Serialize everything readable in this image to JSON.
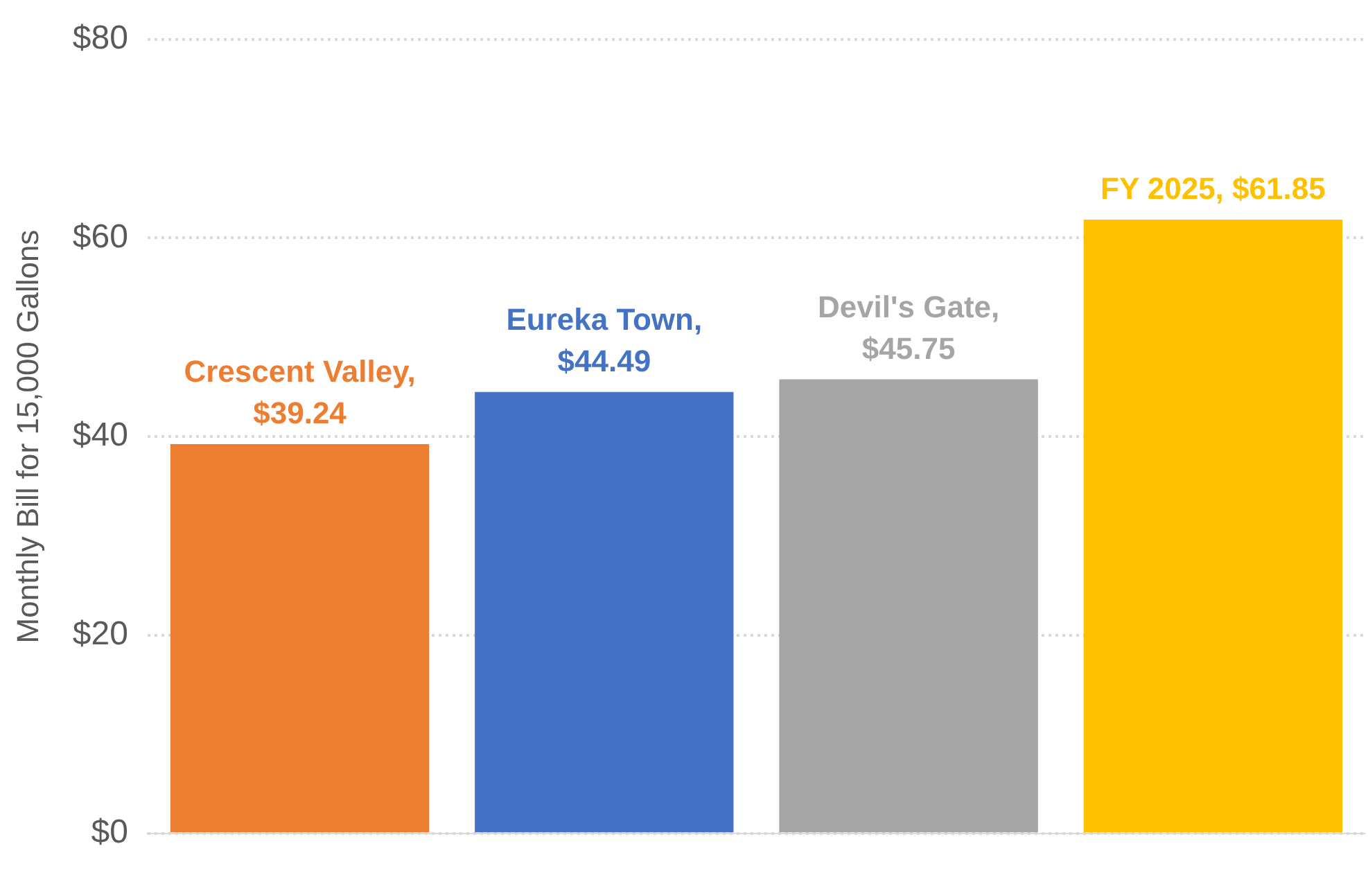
{
  "chart_data": {
    "type": "bar",
    "ylabel": "Monthly Bill for 15,000 Gallons",
    "categories": [
      null,
      null,
      null,
      null
    ],
    "values": [
      39.24,
      44.49,
      45.75,
      61.85
    ],
    "value_labels": [
      "Crescent Valley, $39.24",
      "Eureka Town, $44.49",
      "Devil's Gate, $45.75",
      "FY 2025, $61.85"
    ],
    "colors": [
      "#ed7d31",
      "#4472c4",
      "#a5a5a5",
      "#ffc000"
    ],
    "ylim": [
      0,
      80
    ],
    "yticks": [
      {
        "value": 0,
        "label": "$0"
      },
      {
        "value": 20,
        "label": "$20"
      },
      {
        "value": 40,
        "label": "$40"
      },
      {
        "value": 60,
        "label": "$60"
      },
      {
        "value": 80,
        "label": "$80"
      }
    ],
    "grid": "y",
    "tick_labels": "y",
    "legend": false
  }
}
